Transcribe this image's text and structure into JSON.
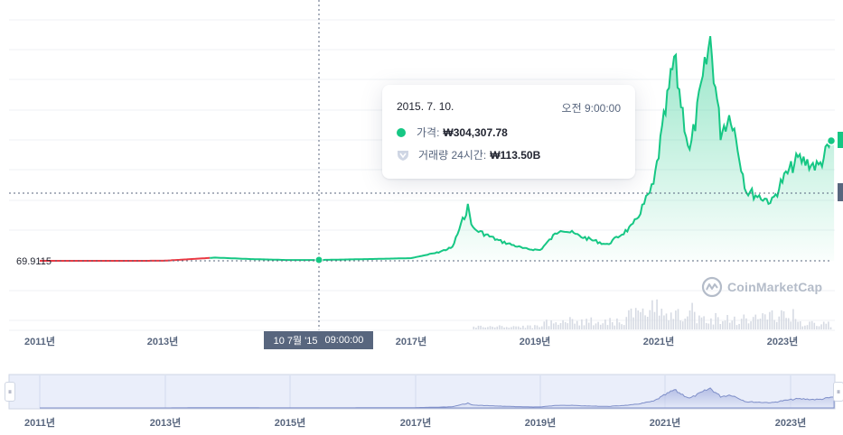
{
  "chart_data": [
    {
      "type": "line",
      "title": "",
      "xlabel": "",
      "ylabel": "",
      "x_ticks": [
        "2011년",
        "2013년",
        "2017년",
        "2019년",
        "2021년",
        "2023년"
      ],
      "y_reference_label": "69.9115",
      "y_reference_value": 69.9115,
      "colors": {
        "before_reference": "#ea3943",
        "line": "#16c784",
        "fill_top": "#16c784"
      },
      "grid": "horizontal",
      "series": [
        {
          "values_description": "price",
          "x": [
            "2010-07",
            "2011-01",
            "2012-01",
            "2013-01",
            "2013-11",
            "2014-06",
            "2015-01",
            "2015-07",
            "2016-06",
            "2017-01",
            "2017-06",
            "2017-09",
            "2017-12",
            "2018-01",
            "2018-06",
            "2018-11",
            "2019-02",
            "2019-06",
            "2019-10",
            "2020-03",
            "2020-08",
            "2020-12",
            "2021-01",
            "2021-04",
            "2021-07",
            "2021-11",
            "2022-01",
            "2022-03",
            "2022-06",
            "2022-11",
            "2023-01",
            "2023-04",
            "2023-08",
            "2023-11"
          ],
          "y": [
            90,
            90,
            5000,
            20000,
            1200000,
            650000,
            300000,
            304307.78,
            700000,
            1000000,
            3000000,
            5000000,
            20000000,
            12000000,
            7500000,
            4500000,
            4000000,
            12000000,
            9000000,
            6000000,
            13000000,
            28000000,
            40000000,
            75000000,
            40000000,
            82000000,
            48000000,
            55000000,
            26000000,
            22000000,
            30000000,
            38000000,
            35000000,
            46000000
          ]
        }
      ]
    },
    {
      "type": "bar",
      "title": "",
      "description_label": "volume",
      "x_range": [
        "2018-01",
        "2023-12"
      ]
    }
  ],
  "tooltip": {
    "date": "2015. 7. 10.",
    "time": "오전 9:00:00",
    "price_key": "가격:",
    "price_value": "₩304,307.78",
    "volume_key": "거래량 24시간:",
    "volume_value": "₩113.50B"
  },
  "hover": {
    "date_label": "10 7월 '15",
    "time_label": "09:00:00"
  },
  "navigator": {
    "x_ticks": [
      "2011년",
      "2013년",
      "2015년",
      "2017년",
      "2019년",
      "2021년",
      "2023년"
    ],
    "left_handle": "⏸",
    "right_handle": "⏸"
  },
  "watermark": {
    "text": "CoinMarketCap",
    "icon": "coinmarketcap-logo-icon"
  }
}
